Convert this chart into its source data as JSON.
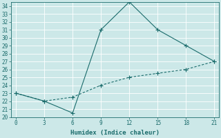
{
  "xlabel": "Humidex (Indice chaleur)",
  "x": [
    0,
    3,
    6,
    9,
    12,
    15,
    18,
    21
  ],
  "line1_y": [
    23,
    22,
    20.5,
    31,
    34.5,
    31,
    29,
    27
  ],
  "line2_y": [
    23,
    22,
    22.5,
    24,
    25,
    25.5,
    26,
    27
  ],
  "line_color": "#1a6b6b",
  "bg_color": "#cce8e8",
  "grid_color": "#ffffff",
  "xlim": [
    -0.5,
    21.5
  ],
  "ylim": [
    20,
    34.5
  ],
  "xticks": [
    0,
    3,
    6,
    9,
    12,
    15,
    18,
    21
  ],
  "yticks": [
    20,
    21,
    22,
    23,
    24,
    25,
    26,
    27,
    28,
    29,
    30,
    31,
    32,
    33,
    34
  ],
  "xlabel_fontsize": 6.5,
  "tick_fontsize": 5.5
}
